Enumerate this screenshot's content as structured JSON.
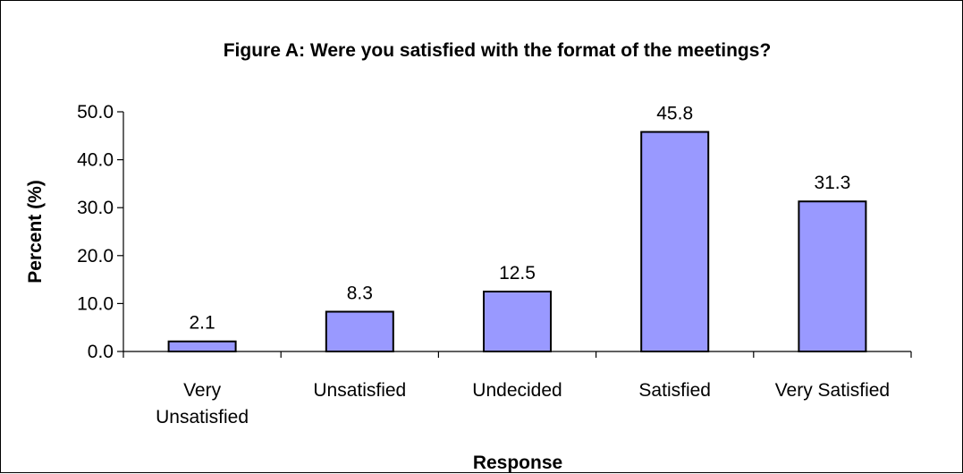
{
  "chart_data": {
    "type": "bar",
    "title": "Figure A: Were you satisfied with the format of the meetings?",
    "xlabel": "Response",
    "ylabel": "Percent (%)",
    "categories": [
      "Very Unsatisfied",
      "Unsatisfied",
      "Undecided",
      "Satisfied",
      "Very Satisfied"
    ],
    "category_lines": [
      [
        "Very",
        "Unsatisfied"
      ],
      [
        "Unsatisfied"
      ],
      [
        "Undecided"
      ],
      [
        "Satisfied"
      ],
      [
        "Very Satisfied"
      ]
    ],
    "values": [
      2.1,
      8.3,
      12.5,
      45.8,
      31.3
    ],
    "data_labels": [
      "2.1",
      "8.3",
      "12.5",
      "45.8",
      "31.3"
    ],
    "ylim": [
      0,
      50
    ],
    "yticks": [
      0,
      10,
      20,
      30,
      40,
      50
    ],
    "ytick_labels": [
      "0.0",
      "10.0",
      "20.0",
      "30.0",
      "40.0",
      "50.0"
    ],
    "grid": false,
    "legend": "none",
    "bar_color": "#9999FF",
    "bar_edge_color": "#000000"
  }
}
